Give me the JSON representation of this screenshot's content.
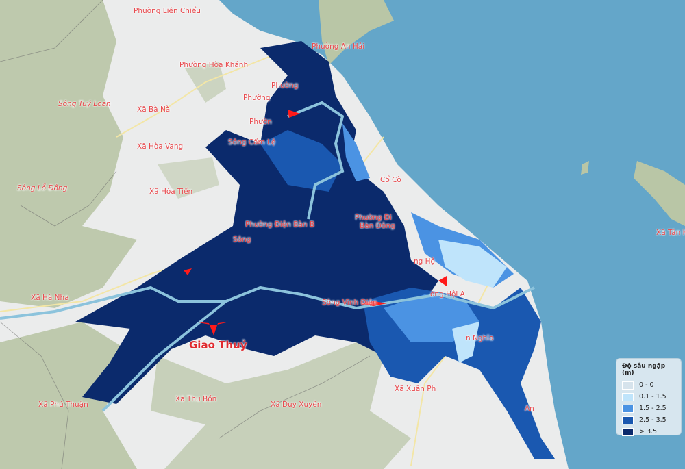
{
  "map": {
    "colors": {
      "sea": "#64a6c9",
      "land": "#ebecec",
      "hills": "#b9c6a6",
      "river": "#8cc3dc",
      "road": "#f3e6a6",
      "marker": "#ff1a1a"
    },
    "labels": [
      {
        "text": "Phường Liên Chiểu",
        "style": "normal"
      },
      {
        "text": "Phường An Hải",
        "style": "normal"
      },
      {
        "text": "Phường Hòa Khánh",
        "style": "normal"
      },
      {
        "text": "Phường",
        "style": "normal"
      },
      {
        "text": "Phường",
        "style": "normal"
      },
      {
        "text": "Phườn",
        "style": "normal"
      },
      {
        "text": "Sông Tuý Loan",
        "style": "italic"
      },
      {
        "text": "Xã Bà Nà",
        "style": "normal"
      },
      {
        "text": "Xã Hòa Vang",
        "style": "normal"
      },
      {
        "text": "Sông Cẩm Lệ",
        "style": "normal"
      },
      {
        "text": "Sông Lỗ Đông",
        "style": "italic"
      },
      {
        "text": "Xã Hòa Tiến",
        "style": "normal"
      },
      {
        "text": "Cổ Cò",
        "style": "normal"
      },
      {
        "text": "Phường Đi",
        "style": "normal"
      },
      {
        "text": "Bàn Đông",
        "style": "normal"
      },
      {
        "text": "Phường Điện Bàn B",
        "style": "normal"
      },
      {
        "text": "Sông",
        "style": "normal"
      },
      {
        "text": "Xã Hà Nha",
        "style": "normal"
      },
      {
        "text": "Giao Thuỷ",
        "style": "bold"
      },
      {
        "text": "Sông Vĩnh Điện",
        "style": "normal"
      },
      {
        "text": "ng Hộ",
        "style": "normal"
      },
      {
        "text": "ờng Hội A",
        "style": "normal"
      },
      {
        "text": "Xã Tân Hi",
        "style": "normal"
      },
      {
        "text": "n Nghĩa",
        "style": "normal"
      },
      {
        "text": "Xã Xuân Ph",
        "style": "normal"
      },
      {
        "text": "Xã Thu Bồn",
        "style": "normal"
      },
      {
        "text": "Xã Duy Xuyên",
        "style": "normal"
      },
      {
        "text": "Xã Phú Thuận",
        "style": "normal"
      },
      {
        "text": "An",
        "style": "normal"
      }
    ]
  },
  "legend": {
    "title": "Độ sâu ngập (m)",
    "items": [
      {
        "label": "0 - 0",
        "color": "#d6e3ec"
      },
      {
        "label": "0.1 - 1.5",
        "color": "#bfe4fb"
      },
      {
        "label": "1.5 - 2.5",
        "color": "#4b93e3"
      },
      {
        "label": "2.5 - 3.5",
        "color": "#1a58b0"
      },
      {
        "label": "> 3.5",
        "color": "#0b2a6c"
      }
    ]
  }
}
